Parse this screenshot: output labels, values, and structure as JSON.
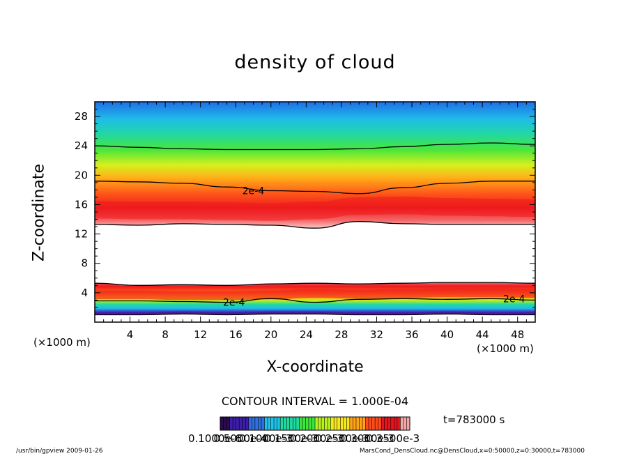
{
  "chart_data": {
    "type": "heatmap",
    "title": "density of cloud",
    "xlabel": "X-coordinate",
    "ylabel": "Z-coordinate",
    "x_unit": "(×1000 m)",
    "y_unit": "(×1000 m)",
    "xlim": [
      0,
      50
    ],
    "ylim": [
      0,
      30
    ],
    "xticks": [
      4,
      8,
      12,
      16,
      20,
      24,
      28,
      32,
      36,
      40,
      44,
      48
    ],
    "yticks": [
      4,
      8,
      12,
      16,
      20,
      24,
      28
    ],
    "contour_interval_text": "CONTOUR INTERVAL = 1.000E-04",
    "contour_label": "2e-4",
    "upper_layer": {
      "x": [
        0,
        5,
        10,
        15,
        20,
        25,
        30,
        35,
        40,
        45,
        50
      ],
      "outer_top": [
        24.0,
        23.8,
        23.6,
        23.5,
        23.5,
        23.5,
        23.6,
        23.9,
        24.2,
        24.4,
        24.2
      ],
      "contour_2e4": [
        19.2,
        19.1,
        18.9,
        18.4,
        17.9,
        17.8,
        17.5,
        18.3,
        18.9,
        19.2,
        19.2
      ],
      "peak_center": [
        15.3,
        15.2,
        15.2,
        15.1,
        15.0,
        15.2,
        15.8,
        15.9,
        15.7,
        15.6,
        15.5
      ],
      "outer_bottom": [
        13.3,
        13.2,
        13.4,
        13.3,
        13.2,
        12.8,
        13.7,
        13.4,
        13.3,
        13.3,
        13.3
      ]
    },
    "lower_layer": {
      "x": [
        0,
        5,
        10,
        15,
        20,
        25,
        30,
        35,
        40,
        45,
        50
      ],
      "outer_top": [
        5.3,
        5.0,
        5.1,
        5.0,
        5.2,
        5.3,
        5.2,
        5.3,
        5.4,
        5.4,
        5.3
      ],
      "contour_2e4": [
        2.9,
        2.9,
        2.8,
        2.7,
        3.2,
        2.7,
        3.1,
        3.2,
        3.1,
        3.2,
        3.0
      ],
      "peak_center": [
        3.6,
        3.6,
        3.5,
        3.5,
        3.6,
        3.8,
        3.7,
        3.8,
        3.9,
        3.9,
        3.8
      ],
      "outer_bottom": [
        1.0,
        1.0,
        1.1,
        1.0,
        1.1,
        1.1,
        1.0,
        1.0,
        1.1,
        1.0,
        1.0
      ]
    },
    "colorbar": {
      "colors": [
        "#2b0b4f",
        "#3c1ea8",
        "#2f6fe0",
        "#1fc2e8",
        "#22d8a0",
        "#3ee63c",
        "#b8f020",
        "#f6e81c",
        "#ffa318",
        "#ff4a1a",
        "#e6151d",
        "#f4a6a6"
      ],
      "tick_labels": [
        "0.1000e-6",
        "0.5000e-4",
        "0.1000e-3",
        "0.1500e-3",
        "0.2000e-3",
        "0.2500e-3",
        "0.3000e-3",
        "0.3500e-3"
      ]
    }
  },
  "time_label": "t=783000 s",
  "footer_left": "/usr/bin/gpview   2009-01-26",
  "footer_right": "MarsCond_DensCloud.nc@DensCloud,x=0:50000,z=0:30000,t=783000"
}
